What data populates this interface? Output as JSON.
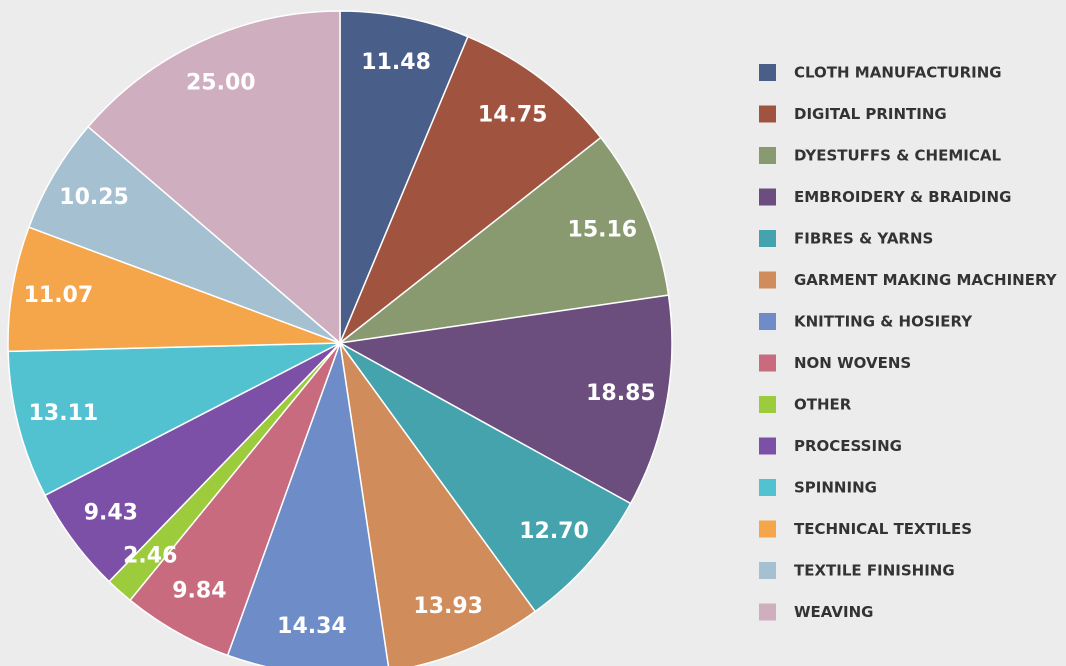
{
  "chart_data": {
    "type": "pie",
    "categories": [
      "CLOTH MANUFACTURING",
      "DIGITAL PRINTING",
      "DYESTUFFS & CHEMICAL",
      "EMBROIDERY & BRAIDING",
      "FIBRES & YARNS",
      "GARMENT MAKING MACHINERY",
      "KNITTING & HOSIERY",
      "NON WOVENS",
      "OTHER",
      "PROCESSING",
      "SPINNING",
      "TECHNICAL TEXTILES",
      "TEXTILE FINISHING",
      "WEAVING"
    ],
    "values": [
      11.48,
      14.75,
      15.16,
      18.85,
      12.7,
      13.93,
      14.34,
      9.84,
      2.46,
      9.43,
      13.11,
      11.07,
      10.25,
      25
    ],
    "value_labels": [
      "11.48",
      "14.75",
      "15.16",
      "18.85",
      "12.70",
      "13.93",
      "14.34",
      "9.84",
      "2.46",
      "9.43",
      "13.11",
      "11.07",
      "10.25",
      "25.00"
    ],
    "colors": [
      "#4a5e8a",
      "#a05440",
      "#8a9a70",
      "#6b4e7e",
      "#45a3ae",
      "#d08c5a",
      "#6d8cc8",
      "#c86b7e",
      "#9ccc3c",
      "#7b50a6",
      "#52c2d0",
      "#f5a54a",
      "#a5c0d0",
      "#cfaec0"
    ],
    "legend": "right"
  }
}
